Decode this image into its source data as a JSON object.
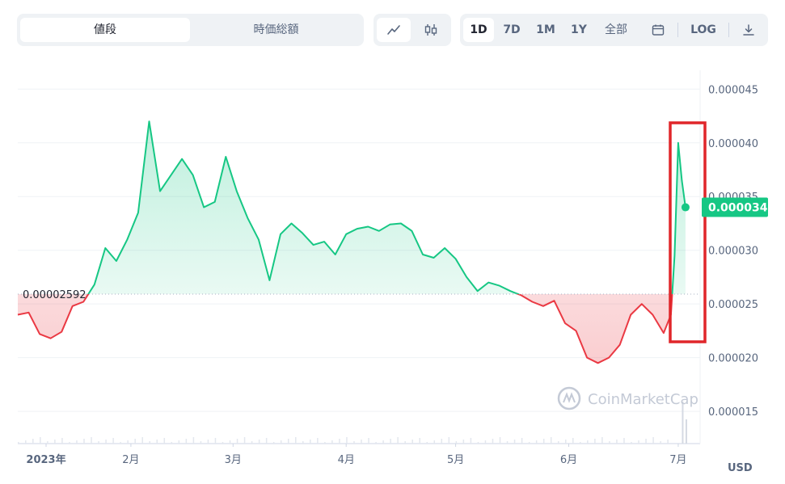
{
  "toolbar": {
    "view_tabs": [
      {
        "label": "値段",
        "active": true
      },
      {
        "label": "時価総額",
        "active": false
      }
    ],
    "chart_types": [
      {
        "icon": "line-chart-icon",
        "active": true
      },
      {
        "icon": "candlestick-icon",
        "active": false
      }
    ],
    "ranges": [
      {
        "label": "1D",
        "active": true
      },
      {
        "label": "7D",
        "active": false
      },
      {
        "label": "1M",
        "active": false
      },
      {
        "label": "1Y",
        "active": false
      },
      {
        "label": "全部",
        "active": false
      }
    ],
    "calendar_icon": "calendar-icon",
    "log_label": "LOG",
    "download_icon": "download-icon"
  },
  "watermark": "CoinMarketCap",
  "currency_label": "USD",
  "colors": {
    "up": "#16c784",
    "down": "#ea3943",
    "highlight": "#e0262a"
  },
  "chart_data": {
    "type": "line",
    "title": "",
    "xlabel": "",
    "ylabel": "",
    "ylim": [
      1.2e-05,
      4.6e-05
    ],
    "y_ticks": [
      "0.000015",
      "0.000020",
      "0.000025",
      "0.000030",
      "0.000035",
      "0.000040",
      "0.000045"
    ],
    "x_ticks": [
      "2023年",
      "2月",
      "3月",
      "4月",
      "5月",
      "6月",
      "7月"
    ],
    "baseline_value": 2.592e-05,
    "baseline_label": "0.00002592",
    "current_value": 3.4e-05,
    "current_label": "0.000034",
    "grid": true,
    "x": [
      "2023-01-01",
      "2023-01-04",
      "2023-01-07",
      "2023-01-10",
      "2023-01-13",
      "2023-01-16",
      "2023-01-19",
      "2023-01-22",
      "2023-01-25",
      "2023-01-28",
      "2023-01-31",
      "2023-02-03",
      "2023-02-06",
      "2023-02-09",
      "2023-02-12",
      "2023-02-15",
      "2023-02-18",
      "2023-02-21",
      "2023-02-24",
      "2023-02-27",
      "2023-03-02",
      "2023-03-05",
      "2023-03-08",
      "2023-03-11",
      "2023-03-14",
      "2023-03-17",
      "2023-03-20",
      "2023-03-23",
      "2023-03-26",
      "2023-03-29",
      "2023-04-01",
      "2023-04-04",
      "2023-04-07",
      "2023-04-10",
      "2023-04-13",
      "2023-04-16",
      "2023-04-19",
      "2023-04-22",
      "2023-04-25",
      "2023-04-28",
      "2023-05-01",
      "2023-05-04",
      "2023-05-07",
      "2023-05-10",
      "2023-05-13",
      "2023-05-16",
      "2023-05-19",
      "2023-05-22",
      "2023-05-25",
      "2023-05-28",
      "2023-05-31",
      "2023-06-03",
      "2023-06-06",
      "2023-06-09",
      "2023-06-12",
      "2023-06-15",
      "2023-06-18",
      "2023-06-21",
      "2023-06-24",
      "2023-06-27",
      "2023-06-29",
      "2023-06-30",
      "2023-07-01",
      "2023-07-02",
      "2023-07-03"
    ],
    "series": [
      {
        "values": [
          2.4e-05,
          2.42e-05,
          2.22e-05,
          2.18e-05,
          2.24e-05,
          2.48e-05,
          2.52e-05,
          2.68e-05,
          3.02e-05,
          2.9e-05,
          3.1e-05,
          3.35e-05,
          4.2e-05,
          3.55e-05,
          3.7e-05,
          3.85e-05,
          3.7e-05,
          3.4e-05,
          3.45e-05,
          3.87e-05,
          3.55e-05,
          3.3e-05,
          3.1e-05,
          2.72e-05,
          3.15e-05,
          3.25e-05,
          3.16e-05,
          3.05e-05,
          3.08e-05,
          2.96e-05,
          3.15e-05,
          3.2e-05,
          3.22e-05,
          3.18e-05,
          3.24e-05,
          3.25e-05,
          3.18e-05,
          2.96e-05,
          2.93e-05,
          3.02e-05,
          2.92e-05,
          2.75e-05,
          2.62e-05,
          2.7e-05,
          2.67e-05,
          2.62e-05,
          2.58e-05,
          2.52e-05,
          2.48e-05,
          2.53e-05,
          2.32e-05,
          2.25e-05,
          2e-05,
          1.95e-05,
          2e-05,
          2.12e-05,
          2.4e-05,
          2.5e-05,
          2.4e-05,
          2.23e-05,
          2.4e-05,
          2.95e-05,
          4e-05,
          3.65e-05,
          3.4e-05
        ]
      }
    ]
  }
}
